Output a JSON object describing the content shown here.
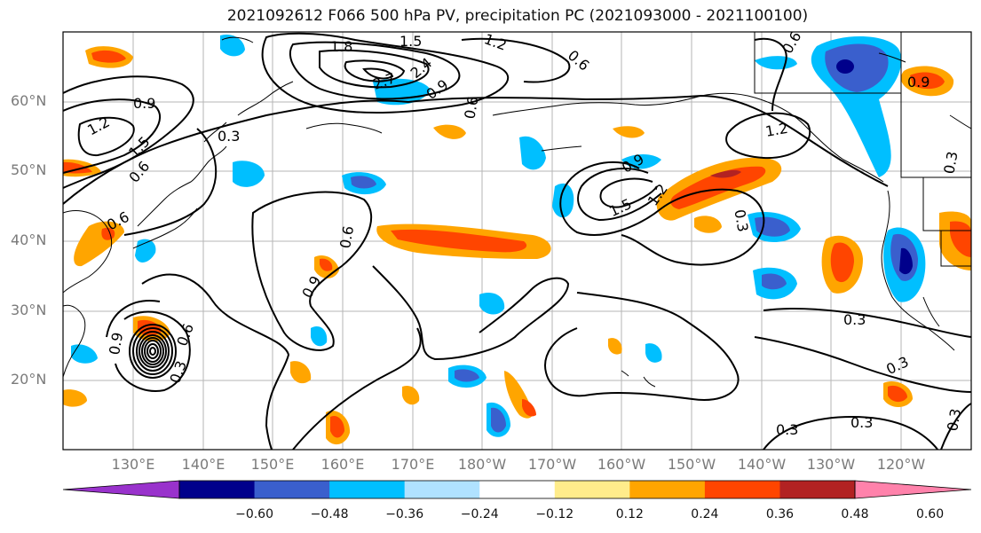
{
  "title": "2021092612 F066 500 hPa PV, precipitation PC (2021093000 - 2021100100)",
  "map": {
    "lat_labels": [
      "60°N",
      "50°N",
      "40°N",
      "30°N",
      "20°N"
    ],
    "lon_labels": [
      "130°E",
      "140°E",
      "150°E",
      "160°E",
      "170°E",
      "180°W",
      "170°W",
      "160°W",
      "150°W",
      "140°W",
      "130°W",
      "120°W"
    ],
    "contour_labels": [
      {
        "text": "0.9"
      },
      {
        "text": "1.2"
      },
      {
        "text": "1.5"
      },
      {
        "text": "0.6"
      },
      {
        "text": "0.3"
      },
      {
        "text": "1.8"
      },
      {
        "text": "1.5"
      },
      {
        "text": "1.2"
      },
      {
        "text": "2.7"
      },
      {
        "text": "2.4"
      },
      {
        "text": "0.9"
      },
      {
        "text": "0.6"
      },
      {
        "text": "0.6"
      },
      {
        "text": "0.6"
      },
      {
        "text": "0.6"
      },
      {
        "text": "0.9"
      },
      {
        "text": "0.3"
      },
      {
        "text": "0.9"
      },
      {
        "text": "1.5"
      },
      {
        "text": "1.2"
      },
      {
        "text": "1.2"
      },
      {
        "text": "0.3"
      },
      {
        "text": "0.9"
      },
      {
        "text": "0.6"
      },
      {
        "text": "0.9"
      },
      {
        "text": "0.3"
      },
      {
        "text": "0.3"
      },
      {
        "text": "0.3"
      },
      {
        "text": "0.3"
      },
      {
        "text": "0.3"
      },
      {
        "text": "0.3"
      },
      {
        "text": "0.6"
      }
    ]
  },
  "colorbar": {
    "colors": [
      "#9932cc",
      "#00008b",
      "#3a5fcd",
      "#00bfff",
      "#b0e2ff",
      "#ffffff",
      "#ffec8b",
      "#ffa500",
      "#ff4500",
      "#b22222",
      "#ff82ab"
    ],
    "tick_labels": [
      "−0.60",
      "−0.48",
      "−0.36",
      "−0.24",
      "−0.12",
      "0.12",
      "0.24",
      "0.36",
      "0.48",
      "0.60"
    ]
  }
}
